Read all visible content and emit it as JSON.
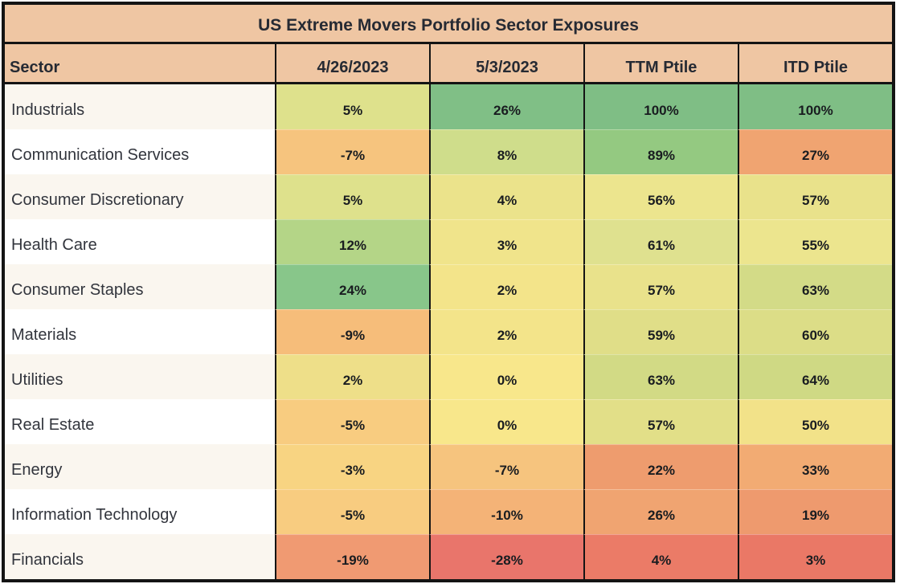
{
  "title": "US Extreme Movers Portfolio Sector Exposures",
  "colors": {
    "header_bg": "#efc6a3",
    "border": "#141414",
    "header_text": "#262a33",
    "sector_text": "#32353d",
    "value_text": "#191c20",
    "row_odd_bg": "#faf6ef",
    "row_even_bg": "#ffffff",
    "scale_low": "#e9756b",
    "scale_mid": "#f8e78b",
    "scale_high": "#7fbe85"
  },
  "table": {
    "columns": [
      {
        "label": "Sector"
      },
      {
        "label": "4/26/2023"
      },
      {
        "label": "5/3/2023"
      },
      {
        "label": "TTM Ptile"
      },
      {
        "label": "ITD Ptile"
      }
    ],
    "rows": [
      {
        "sector": "Industrials",
        "row_bg": "#faf6ef",
        "cells": [
          {
            "text": "5%",
            "bg": "#dee18c"
          },
          {
            "text": "26%",
            "bg": "#80bf86"
          },
          {
            "text": "100%",
            "bg": "#7fbe85"
          },
          {
            "text": "100%",
            "bg": "#7fbe85"
          }
        ]
      },
      {
        "sector": "Communication Services",
        "row_bg": "#ffffff",
        "cells": [
          {
            "text": "-7%",
            "bg": "#f6c47e"
          },
          {
            "text": "8%",
            "bg": "#cfdd8b"
          },
          {
            "text": "89%",
            "bg": "#94c981"
          },
          {
            "text": "27%",
            "bg": "#f0a471"
          }
        ]
      },
      {
        "sector": "Consumer Discretionary",
        "row_bg": "#faf6ef",
        "cells": [
          {
            "text": "5%",
            "bg": "#dee18c"
          },
          {
            "text": "4%",
            "bg": "#ebe38b"
          },
          {
            "text": "56%",
            "bg": "#ece58e"
          },
          {
            "text": "57%",
            "bg": "#e9e28b"
          }
        ]
      },
      {
        "sector": "Health Care",
        "row_bg": "#ffffff",
        "cells": [
          {
            "text": "12%",
            "bg": "#b4d587"
          },
          {
            "text": "3%",
            "bg": "#f0e48b"
          },
          {
            "text": "61%",
            "bg": "#dfe18f"
          },
          {
            "text": "55%",
            "bg": "#ece58e"
          }
        ]
      },
      {
        "sector": "Consumer Staples",
        "row_bg": "#faf6ef",
        "cells": [
          {
            "text": "24%",
            "bg": "#88c68a"
          },
          {
            "text": "2%",
            "bg": "#f3e48a"
          },
          {
            "text": "57%",
            "bg": "#e9e28b"
          },
          {
            "text": "63%",
            "bg": "#d3db87"
          }
        ]
      },
      {
        "sector": "Materials",
        "row_bg": "#ffffff",
        "cells": [
          {
            "text": "-9%",
            "bg": "#f6bd7a"
          },
          {
            "text": "2%",
            "bg": "#f3e48a"
          },
          {
            "text": "59%",
            "bg": "#e0de88"
          },
          {
            "text": "60%",
            "bg": "#dcdd87"
          }
        ]
      },
      {
        "sector": "Utilities",
        "row_bg": "#faf6ef",
        "cells": [
          {
            "text": "2%",
            "bg": "#eedf89"
          },
          {
            "text": "0%",
            "bg": "#f8e78b"
          },
          {
            "text": "63%",
            "bg": "#d2da85"
          },
          {
            "text": "64%",
            "bg": "#cfd984"
          }
        ]
      },
      {
        "sector": "Real Estate",
        "row_bg": "#ffffff",
        "cells": [
          {
            "text": "-5%",
            "bg": "#f8cc80"
          },
          {
            "text": "0%",
            "bg": "#f8e78b"
          },
          {
            "text": "57%",
            "bg": "#e2df88"
          },
          {
            "text": "50%",
            "bg": "#f2e289"
          }
        ]
      },
      {
        "sector": "Energy",
        "row_bg": "#faf6ef",
        "cells": [
          {
            "text": "-3%",
            "bg": "#f8d482"
          },
          {
            "text": "-7%",
            "bg": "#f6c47e"
          },
          {
            "text": "22%",
            "bg": "#ee9c6e"
          },
          {
            "text": "33%",
            "bg": "#f2ab73"
          }
        ]
      },
      {
        "sector": "Information Technology",
        "row_bg": "#ffffff",
        "cells": [
          {
            "text": "-5%",
            "bg": "#f8cc80"
          },
          {
            "text": "-10%",
            "bg": "#f4b377"
          },
          {
            "text": "26%",
            "bg": "#f0a471"
          },
          {
            "text": "19%",
            "bg": "#ee9a6e"
          }
        ]
      },
      {
        "sector": "Financials",
        "row_bg": "#faf6ef",
        "cells": [
          {
            "text": "-19%",
            "bg": "#f09a72"
          },
          {
            "text": "-28%",
            "bg": "#e9756b"
          },
          {
            "text": "4%",
            "bg": "#eb7b67"
          },
          {
            "text": "3%",
            "bg": "#ea7866"
          }
        ]
      }
    ]
  },
  "chart_data": {
    "type": "heatmap",
    "title": "US Extreme Movers Portfolio Sector Exposures",
    "columns": [
      "4/26/2023",
      "5/3/2023",
      "TTM Ptile",
      "ITD Ptile"
    ],
    "rows": [
      "Industrials",
      "Communication Services",
      "Consumer Discretionary",
      "Health Care",
      "Consumer Staples",
      "Materials",
      "Utilities",
      "Real Estate",
      "Energy",
      "Information Technology",
      "Financials"
    ],
    "values_pct": [
      [
        5,
        26,
        100,
        100
      ],
      [
        -7,
        8,
        89,
        27
      ],
      [
        5,
        4,
        56,
        57
      ],
      [
        12,
        3,
        61,
        55
      ],
      [
        24,
        2,
        57,
        63
      ],
      [
        -9,
        2,
        59,
        60
      ],
      [
        2,
        0,
        63,
        64
      ],
      [
        -5,
        0,
        57,
        50
      ],
      [
        -3,
        -7,
        22,
        33
      ],
      [
        -5,
        -10,
        26,
        19
      ],
      [
        -19,
        -28,
        4,
        3
      ]
    ],
    "unit": "%",
    "color_scale": "red-yellow-green",
    "legend_position": "none",
    "grid": "black column separators, no horizontal gridlines in data area"
  }
}
